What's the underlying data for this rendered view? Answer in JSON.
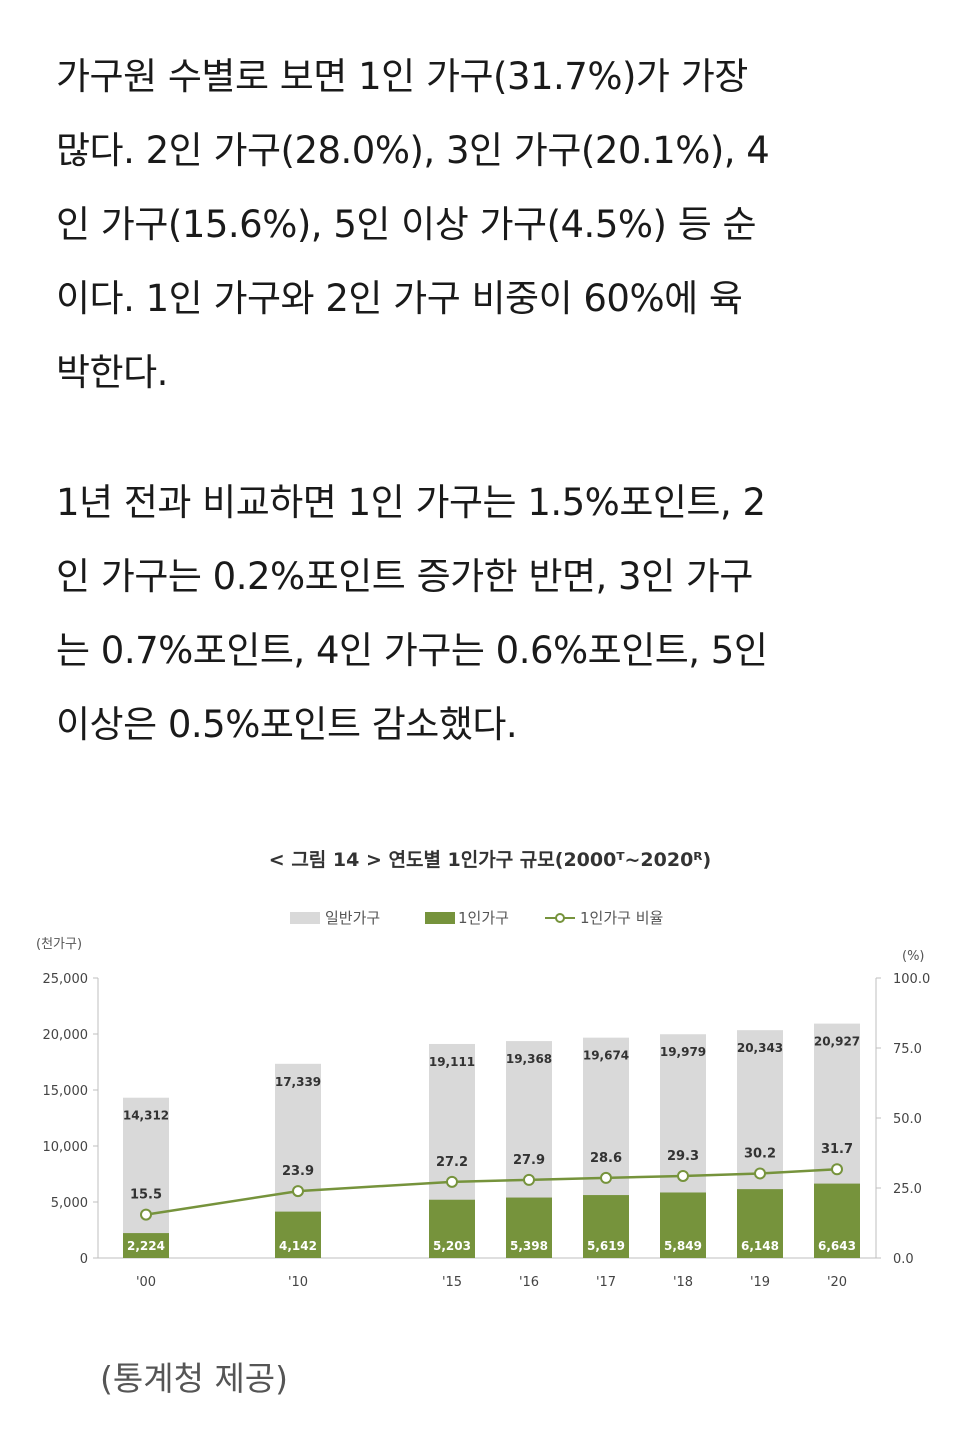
{
  "article": {
    "paragraph1": "가구원 수별로 보면 1인 가구(31.7%)가 가장\n많다. 2인 가구(28.0%), 3인 가구(20.1%), 4\n인 가구(15.6%), 5인 이상 가구(4.5%) 등 순\n이다. 1인 가구와 2인 가구 비중이 60%에 육\n박한다.",
    "paragraph2": "1년 전과 비교하면 1인 가구는 1.5%포인트, 2\n인 가구는 0.2%포인트 증가한 반면, 3인 가구\n는 0.7%포인트, 4인 가구는 0.6%포인트, 5인\n이상은 0.5%포인트 감소했다."
  },
  "chart_data": {
    "type": "bar",
    "title": "< 그림 14 > 연도별 1인가구 규모(2000ᵀ~2020ᴿ)",
    "categories": [
      "'00",
      "'10",
      "'15",
      "'16",
      "'17",
      "'18",
      "'19",
      "'20"
    ],
    "series": [
      {
        "name": "일반가구",
        "kind": "bar",
        "color": "#d9d9d9",
        "values": [
          14312,
          17339,
          19111,
          19368,
          19674,
          19979,
          20343,
          20927
        ],
        "labels": [
          "14,312",
          "17,339",
          "19,111",
          "19,368",
          "19,674",
          "19,979",
          "20,343",
          "20,927"
        ]
      },
      {
        "name": "1인가구",
        "kind": "bar",
        "color": "#76933c",
        "values": [
          2224,
          4142,
          5203,
          5398,
          5619,
          5849,
          6148,
          6643
        ],
        "labels": [
          "2,224",
          "4,142",
          "5,203",
          "5,398",
          "5,619",
          "5,849",
          "6,148",
          "6,643"
        ]
      },
      {
        "name": "1인가구 비율",
        "kind": "line",
        "axis": "right",
        "color": "#76933c",
        "values": [
          15.5,
          23.9,
          27.2,
          27.9,
          28.6,
          29.3,
          30.2,
          31.7
        ],
        "labels": [
          "15.5",
          "23.9",
          "27.2",
          "27.9",
          "28.6",
          "29.3",
          "30.2",
          "31.7"
        ]
      }
    ],
    "ylabel_left": "(천가구)",
    "ylabel_right": "(%)",
    "ylim_left": [
      0,
      25000
    ],
    "ylim_right": [
      0,
      100
    ],
    "yticks_left": [
      "0",
      "5,000",
      "10,000",
      "15,000",
      "20,000",
      "25,000"
    ],
    "yticks_right": [
      "0.0",
      "25.0",
      "50.0",
      "75.0",
      "100.0"
    ],
    "grid": false,
    "legend_position": "top-center"
  },
  "caption": "(통계청 제공)"
}
